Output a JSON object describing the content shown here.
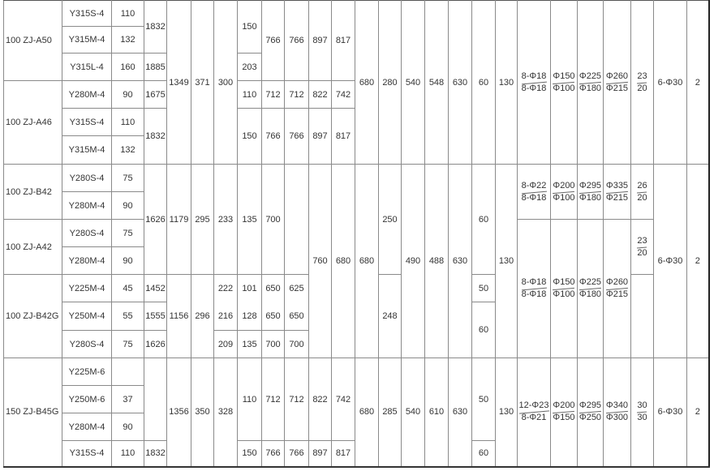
{
  "rows": [
    [
      "100 ZJ-A50",
      "Y315S-4",
      "110",
      "1832",
      "1349",
      "371",
      "300",
      "150",
      "766",
      "766",
      "897",
      "817",
      "680",
      "280",
      "540",
      "548",
      "630",
      "60",
      "130",
      {
        "num": "8-Φ18",
        "den": "8-Φ18"
      },
      {
        "num": "Φ150",
        "den": "Φ100"
      },
      {
        "num": "Φ225",
        "den": "Φ180"
      },
      {
        "num": "Φ260",
        "den": "Φ215"
      },
      {
        "num": "23",
        "den": "20"
      },
      "6-Φ30",
      "2"
    ],
    [
      "Y315M-4",
      "132"
    ],
    [
      "Y315L-4",
      "160",
      "1885",
      "203"
    ],
    [
      "100 ZJ-A46",
      "Y280M-4",
      "90",
      "1675",
      "110",
      "712",
      "712",
      "822",
      "742"
    ],
    [
      "Y315S-4",
      "110",
      "1832",
      "150",
      "766",
      "766",
      "897",
      "817"
    ],
    [
      "Y315M-4",
      "132"
    ],
    [
      "100 ZJ-B42",
      "Y280S-4",
      "75",
      "1626",
      "1179",
      "295",
      "233",
      "135",
      "700",
      "",
      "760",
      "680",
      "680",
      "250",
      "490",
      "488",
      "630",
      "60",
      "130",
      {
        "num": "8-Φ22",
        "den": "8-Φ18"
      },
      {
        "num": "Φ200",
        "den": "Φ100"
      },
      {
        "num": "Φ295",
        "den": "Φ180"
      },
      {
        "num": "Φ335",
        "den": "Φ215"
      },
      {
        "num": "26",
        "den": "20"
      },
      "6-Φ30",
      "2"
    ],
    [
      "Y280M-4",
      "90"
    ],
    [
      "100 ZJ-A42",
      "Y280S-4",
      "75",
      {
        "num": "8-Φ18",
        "den": "8-Φ18"
      },
      {
        "num": "Φ150",
        "den": "Φ100"
      },
      {
        "num": "Φ225",
        "den": "Φ180"
      },
      {
        "num": "Φ260",
        "den": "Φ215"
      },
      {
        "num": "23",
        "den": "20"
      }
    ],
    [
      "Y280M-4",
      "90"
    ],
    [
      "100 ZJ-B42G",
      "Y225M-4",
      "45",
      "1452",
      "1156",
      "296",
      [
        "222",
        "216"
      ],
      [
        "101",
        "128"
      ],
      [
        "650",
        "650"
      ],
      [
        "625",
        "650"
      ],
      "248",
      "50",
      ""
    ],
    [
      "Y250M-4",
      "55",
      "1555",
      "60"
    ],
    [
      "Y280S-4",
      "75",
      "1626",
      "209",
      "135",
      "700",
      "700"
    ],
    [
      "150 ZJ-B45G",
      "Y225M-6",
      "",
      "",
      "1356",
      "350",
      "328",
      "110",
      "712",
      "712",
      "822",
      "742",
      "680",
      "285",
      "540",
      "610",
      "630",
      "50",
      "130",
      {
        "num": "12-Φ23",
        "den": "8-Φ21"
      },
      {
        "num": "Φ200",
        "den": "Φ150"
      },
      {
        "num": "Φ295",
        "den": "Φ250"
      },
      {
        "num": "Φ340",
        "den": "Φ300"
      },
      {
        "num": "30",
        "den": "30"
      },
      "6-Φ30",
      "2"
    ],
    [
      "Y250M-6",
      "37"
    ],
    [
      "Y280M-4",
      "90"
    ],
    [
      "Y315S-4",
      "110",
      "1832",
      "150",
      "766",
      "766",
      "897",
      "817",
      "60"
    ]
  ]
}
